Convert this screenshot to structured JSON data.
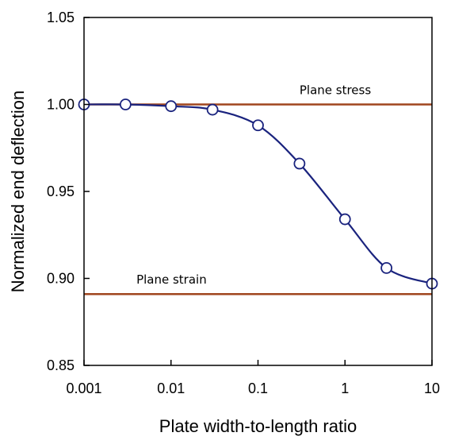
{
  "chart_data": {
    "type": "line",
    "title": "",
    "xlabel": "Plate width-to-length ratio",
    "ylabel": "Normalized end deflection",
    "xscale": "log",
    "xlim": [
      0.001,
      10
    ],
    "ylim": [
      0.85,
      1.05
    ],
    "x_tick_labels": [
      "0.001",
      "0.01",
      "0.1",
      "1",
      "10"
    ],
    "x_ticks": [
      0.001,
      0.01,
      0.1,
      1,
      10
    ],
    "y_tick_labels": [
      "0.85",
      "0.90",
      "0.95",
      "1.00",
      "1.05"
    ],
    "y_ticks": [
      0.85,
      0.9,
      0.95,
      1.0,
      1.05
    ],
    "grid": false,
    "series": [
      {
        "x": [
          0.001,
          0.003,
          0.01,
          0.03,
          0.1,
          0.3,
          1,
          3,
          10
        ],
        "y": [
          1.0,
          1.0,
          0.999,
          0.997,
          0.988,
          0.966,
          0.934,
          0.906,
          0.897
        ],
        "color": "#1a237e",
        "marker": "circle"
      }
    ],
    "reference_lines": [
      {
        "label": "Plane stress",
        "y": 1.0,
        "color": "#a0461e",
        "label_x": 0.3
      },
      {
        "label": "Plane strain",
        "y": 0.891,
        "color": "#a0461e",
        "label_x": 0.004
      }
    ]
  }
}
